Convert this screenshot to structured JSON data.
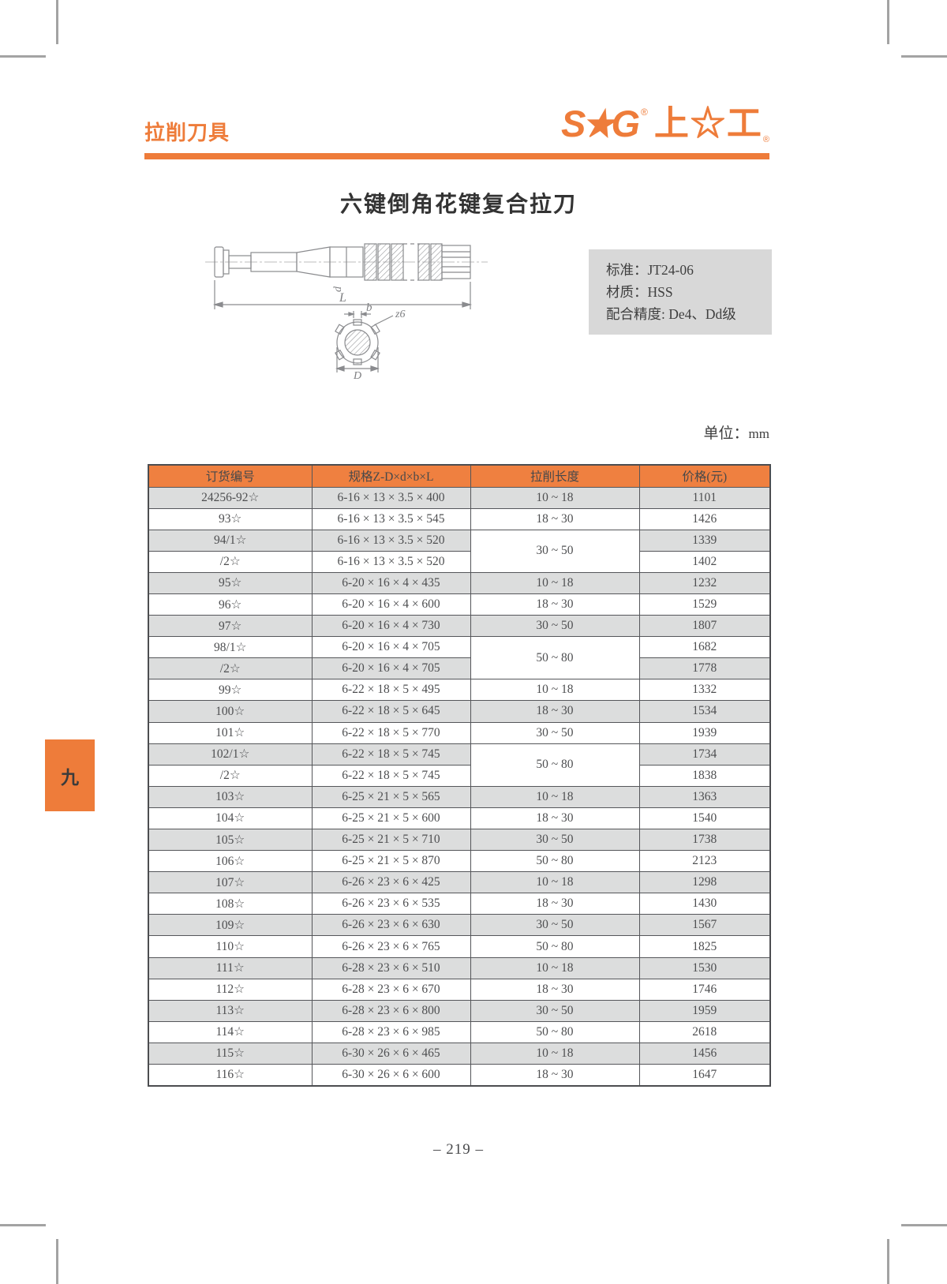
{
  "colors": {
    "accent": "#EE7C3A",
    "table_header_bg": "#EF8040",
    "row_shade": "#DCDDDD",
    "spec_box_bg": "#D8D8D8"
  },
  "header": {
    "category": "拉削刀具",
    "logo_sg": "S★G",
    "logo_cn": "上☆工",
    "reg_mark": "®"
  },
  "title": "六键倒角花键复合拉刀",
  "spec_box": {
    "line1": "标准：JT24-06",
    "line2": "材质：HSS",
    "line3": "配合精度: De4、Dd级"
  },
  "drawing": {
    "labels": {
      "d": "d",
      "L": "L",
      "b": "b",
      "z6": "z6",
      "D": "D"
    }
  },
  "unit": {
    "label": "单位：",
    "value": "mm"
  },
  "table": {
    "headers": [
      "订货编号",
      "规格Z-D×d×b×L",
      "拉削长度",
      "价格(元)"
    ],
    "rows": [
      {
        "code": "24256-92☆",
        "spec": "6-16 × 13 × 3.5 × 400",
        "length": "10 ~ 18",
        "price": "1101"
      },
      {
        "code": "93☆",
        "spec": "6-16 × 13 × 3.5 × 545",
        "length": "18 ~ 30",
        "price": "1426"
      },
      {
        "code": "94/1☆",
        "spec": "6-16 × 13 × 3.5 × 520",
        "length": "30 ~ 50",
        "rowspan": 2,
        "price": "1339"
      },
      {
        "code": "/2☆",
        "spec": "6-16 × 13 × 3.5 × 520",
        "length": null,
        "price": "1402"
      },
      {
        "code": "95☆",
        "spec": "6-20 × 16 × 4 × 435",
        "length": "10 ~ 18",
        "price": "1232"
      },
      {
        "code": "96☆",
        "spec": "6-20 × 16 × 4 × 600",
        "length": "18 ~ 30",
        "price": "1529"
      },
      {
        "code": "97☆",
        "spec": "6-20 × 16 × 4 × 730",
        "length": "30 ~ 50",
        "price": "1807"
      },
      {
        "code": "98/1☆",
        "spec": "6-20 × 16 × 4 × 705",
        "length": "50 ~ 80",
        "rowspan": 2,
        "price": "1682"
      },
      {
        "code": "/2☆",
        "spec": "6-20 × 16 × 4 × 705",
        "length": null,
        "price": "1778"
      },
      {
        "code": "99☆",
        "spec": "6-22 × 18 × 5 × 495",
        "length": "10 ~ 18",
        "price": "1332"
      },
      {
        "code": "100☆",
        "spec": "6-22 × 18 × 5 × 645",
        "length": "18 ~ 30",
        "price": "1534"
      },
      {
        "code": "101☆",
        "spec": "6-22 × 18 × 5 × 770",
        "length": "30 ~ 50",
        "price": "1939"
      },
      {
        "code": "102/1☆",
        "spec": "6-22 × 18 × 5 × 745",
        "length": "50 ~ 80",
        "rowspan": 2,
        "price": "1734"
      },
      {
        "code": "/2☆",
        "spec": "6-22 × 18 × 5 × 745",
        "length": null,
        "price": "1838"
      },
      {
        "code": "103☆",
        "spec": "6-25 × 21 × 5 × 565",
        "length": "10 ~ 18",
        "price": "1363"
      },
      {
        "code": "104☆",
        "spec": "6-25 × 21 × 5 × 600",
        "length": "18 ~ 30",
        "price": "1540"
      },
      {
        "code": "105☆",
        "spec": "6-25 × 21 × 5 × 710",
        "length": "30 ~ 50",
        "price": "1738"
      },
      {
        "code": "106☆",
        "spec": "6-25 × 21 × 5 × 870",
        "length": "50 ~ 80",
        "price": "2123"
      },
      {
        "code": "107☆",
        "spec": "6-26 × 23 × 6 × 425",
        "length": "10 ~ 18",
        "price": "1298"
      },
      {
        "code": "108☆",
        "spec": "6-26 × 23 × 6 × 535",
        "length": "18 ~ 30",
        "price": "1430"
      },
      {
        "code": "109☆",
        "spec": "6-26 × 23 × 6 × 630",
        "length": "30 ~ 50",
        "price": "1567"
      },
      {
        "code": "110☆",
        "spec": "6-26 × 23 × 6 × 765",
        "length": "50 ~ 80",
        "price": "1825"
      },
      {
        "code": "111☆",
        "spec": "6-28 × 23 × 6 × 510",
        "length": "10 ~ 18",
        "price": "1530"
      },
      {
        "code": "112☆",
        "spec": "6-28 × 23 × 6 × 670",
        "length": "18 ~ 30",
        "price": "1746"
      },
      {
        "code": "113☆",
        "spec": "6-28 × 23 × 6 × 800",
        "length": "30 ~ 50",
        "price": "1959"
      },
      {
        "code": "114☆",
        "spec": "6-28 × 23 × 6 × 985",
        "length": "50 ~ 80",
        "price": "2618"
      },
      {
        "code": "115☆",
        "spec": "6-30 × 26 × 6 × 465",
        "length": "10 ~ 18",
        "price": "1456"
      },
      {
        "code": "116☆",
        "spec": "6-30 × 26 × 6 × 600",
        "length": "18 ~ 30",
        "price": "1647"
      }
    ]
  },
  "side_tab": "九",
  "footer": {
    "page_number": "– 219 –"
  }
}
